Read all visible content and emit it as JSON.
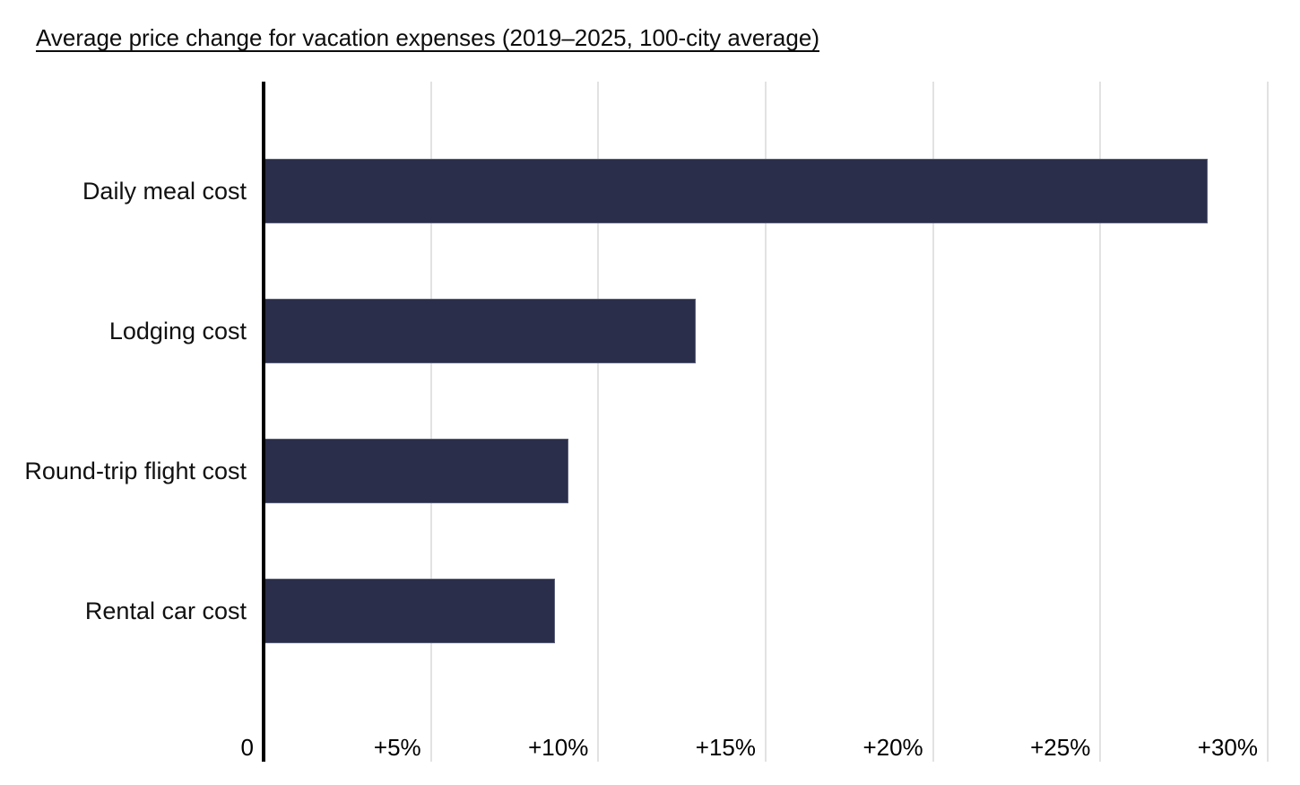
{
  "page": {
    "background": "#ffffff"
  },
  "chart_data": {
    "type": "bar",
    "orientation": "horizontal",
    "title": "Average price change for vacation expenses (2019–2025, 100-city average)",
    "categories": [
      "Daily meal cost",
      "Lodging cost",
      "Round-trip flight cost",
      "Rental car cost"
    ],
    "values": [
      28.2,
      12.9,
      9.1,
      8.7
    ],
    "value_unit": "percent",
    "xlim": [
      0,
      30
    ],
    "x_ticks": {
      "values": [
        0,
        5,
        10,
        15,
        20,
        25,
        30
      ],
      "labels": [
        "0",
        "+5%",
        "+10%",
        "+15%",
        "+20%",
        "+25%",
        "+30%"
      ]
    },
    "grid": true,
    "legend_position": "none",
    "colors": {
      "bar": "#2a2e4a",
      "bar_edge": "#5a5f78",
      "gridline": "#e2e2e2",
      "axis": "#000000",
      "title_text": "#0d0d0d",
      "label_text": "#111111"
    }
  }
}
